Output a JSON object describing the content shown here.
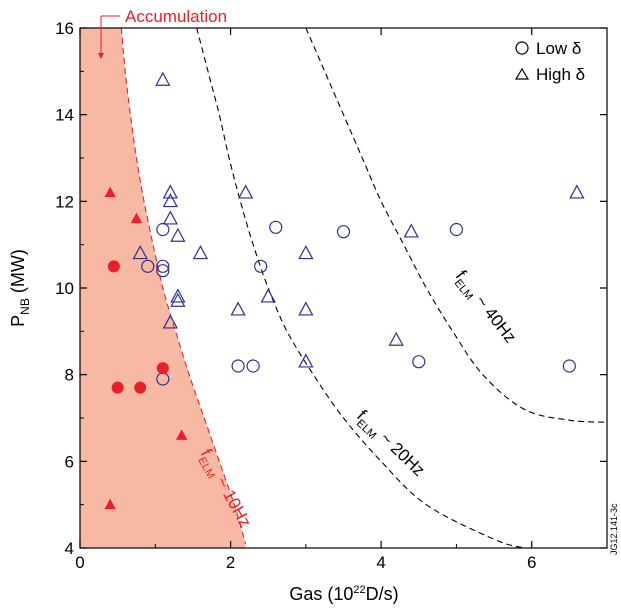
{
  "chart_data": {
    "type": "scatter",
    "xlabel": "Gas (10",
    "xlabel_sup": "22",
    "xlabel_tail": "D/s)",
    "ylabel_main": "P",
    "ylabel_sub": "NB",
    "ylabel_tail": " (MW)",
    "xlim": [
      0,
      7
    ],
    "ylim": [
      4,
      16
    ],
    "x_ticks": [
      "0",
      "2",
      "4",
      "6"
    ],
    "y_ticks": [
      "4",
      "6",
      "8",
      "10",
      "12",
      "14",
      "16"
    ],
    "legend": {
      "placement": "top-right",
      "items": [
        {
          "label": "Low δ",
          "marker": "circle"
        },
        {
          "label": "High δ",
          "marker": "triangle"
        }
      ]
    },
    "annotations": {
      "accumulation": "Accumulation",
      "f10_base": "f",
      "f10_sub": "ELM",
      "f10_tail": " ~ 10Hz",
      "f20_base": "f",
      "f20_sub": "ELM",
      "f20_tail": " ~ 20Hz",
      "f40_base": "f",
      "f40_sub": "ELM",
      "f40_tail": " ~ 40Hz",
      "code": "JG12.141-3c"
    },
    "colors": {
      "accent_red": "#e8202a",
      "fill_region": "#f7b9a3",
      "blue": "#2e3192"
    },
    "curves": [
      {
        "name": "f_ELM ~ 10Hz",
        "color": "#e8202a",
        "points": [
          [
            0.55,
            16
          ],
          [
            0.6,
            15
          ],
          [
            0.67,
            14
          ],
          [
            0.75,
            13
          ],
          [
            0.85,
            12
          ],
          [
            0.97,
            11
          ],
          [
            1.1,
            10
          ],
          [
            1.27,
            9
          ],
          [
            1.45,
            8
          ],
          [
            1.65,
            7
          ],
          [
            1.85,
            6
          ],
          [
            2.05,
            5
          ],
          [
            2.2,
            4.1
          ]
        ]
      },
      {
        "name": "f_ELM ~ 20Hz",
        "color": "#000000",
        "points": [
          [
            1.55,
            16
          ],
          [
            1.7,
            15
          ],
          [
            1.85,
            14
          ],
          [
            1.98,
            13
          ],
          [
            2.13,
            12
          ],
          [
            2.3,
            11
          ],
          [
            2.5,
            10
          ],
          [
            2.75,
            9
          ],
          [
            3.1,
            8
          ],
          [
            3.5,
            7
          ],
          [
            4.0,
            6
          ],
          [
            4.6,
            5
          ],
          [
            5.5,
            4.2
          ],
          [
            5.9,
            4
          ]
        ]
      },
      {
        "name": "f_ELM ~ 40Hz",
        "color": "#000000",
        "points": [
          [
            3.0,
            16
          ],
          [
            3.25,
            15
          ],
          [
            3.5,
            14
          ],
          [
            3.75,
            13
          ],
          [
            4.0,
            12
          ],
          [
            4.3,
            11
          ],
          [
            4.6,
            10
          ],
          [
            4.95,
            9
          ],
          [
            5.35,
            8
          ],
          [
            5.9,
            7.2
          ],
          [
            6.5,
            6.95
          ],
          [
            7.0,
            6.9
          ]
        ]
      }
    ],
    "series": [
      {
        "name": "Low δ",
        "marker": "circle-open",
        "color": "#2e3192",
        "points": [
          [
            1.1,
            11.35
          ],
          [
            0.9,
            10.5
          ],
          [
            1.1,
            10.5
          ],
          [
            1.1,
            10.4
          ],
          [
            1.1,
            7.9
          ],
          [
            2.1,
            8.2
          ],
          [
            2.3,
            8.2
          ],
          [
            2.6,
            11.4
          ],
          [
            2.4,
            10.5
          ],
          [
            3.5,
            11.3
          ],
          [
            5.0,
            11.35
          ],
          [
            4.5,
            8.3
          ],
          [
            6.5,
            8.2
          ]
        ]
      },
      {
        "name": "High δ",
        "marker": "triangle-open",
        "color": "#2e3192",
        "points": [
          [
            1.1,
            14.8
          ],
          [
            1.2,
            12.2
          ],
          [
            1.2,
            12.0
          ],
          [
            1.2,
            11.6
          ],
          [
            1.3,
            11.2
          ],
          [
            0.8,
            10.8
          ],
          [
            1.6,
            10.8
          ],
          [
            1.3,
            9.8
          ],
          [
            1.3,
            9.7
          ],
          [
            1.2,
            9.2
          ],
          [
            2.1,
            9.5
          ],
          [
            2.2,
            12.2
          ],
          [
            2.5,
            9.8
          ],
          [
            3.0,
            10.8
          ],
          [
            3.0,
            9.5
          ],
          [
            3.0,
            8.3
          ],
          [
            4.4,
            11.3
          ],
          [
            4.2,
            8.8
          ],
          [
            6.6,
            12.2
          ]
        ]
      },
      {
        "name": "Accumulation low",
        "marker": "circle-filled",
        "color": "#e8202a",
        "points": [
          [
            0.45,
            10.5
          ],
          [
            0.5,
            7.7
          ],
          [
            0.8,
            7.7
          ],
          [
            1.1,
            8.15
          ]
        ]
      },
      {
        "name": "Accumulation high",
        "marker": "triangle-filled",
        "color": "#e8202a",
        "points": [
          [
            0.4,
            12.2
          ],
          [
            0.75,
            11.6
          ],
          [
            0.4,
            5.0
          ],
          [
            1.35,
            6.6
          ]
        ]
      }
    ]
  }
}
